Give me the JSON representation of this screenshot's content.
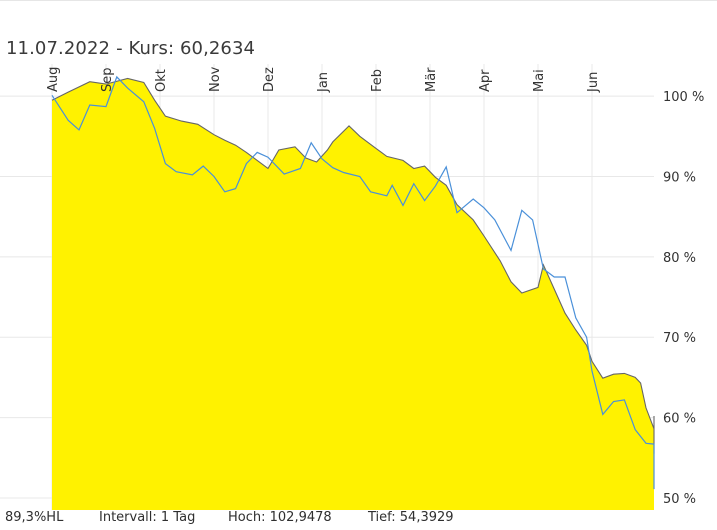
{
  "header": {
    "date": "11.07.2022",
    "price_text": "- Kurs: 60,2634"
  },
  "footer": {
    "range_label": "89,3%HL",
    "interval": "Intervall: 1 Tag",
    "high": "Hoch: 102,9478",
    "low": "Tief: 54,3929"
  },
  "colors": {
    "area_fill": "#fff200",
    "area_line": "#666666",
    "compare_line": "#4a90d9",
    "grid": "#e8e8e8"
  },
  "chart_data": {
    "type": "area",
    "x_ticks": [
      "Aug",
      "Sep",
      "Okt",
      "Nov",
      "Dez",
      "Jan",
      "Feb",
      "Mär",
      "Apr",
      "Mai",
      "Jun"
    ],
    "y_ticks": [
      "100 %",
      "90 %",
      "80 %",
      "70 %",
      "60 %",
      "50 %"
    ],
    "y_tick_values": [
      100,
      90,
      80,
      70,
      60,
      50
    ],
    "ylim": [
      48.5,
      104
    ],
    "series": [
      {
        "style": "area",
        "points": [
          [
            0,
            99.5
          ],
          [
            0.3,
            100.5
          ],
          [
            0.7,
            101.8
          ],
          [
            1.0,
            101.5
          ],
          [
            1.4,
            102.2
          ],
          [
            1.7,
            101.7
          ],
          [
            1.9,
            99.5
          ],
          [
            2.1,
            97.5
          ],
          [
            2.4,
            96.9
          ],
          [
            2.7,
            96.5
          ],
          [
            3.0,
            95.2
          ],
          [
            3.2,
            94.5
          ],
          [
            3.4,
            93.9
          ],
          [
            3.6,
            93.0
          ],
          [
            3.8,
            92.0
          ],
          [
            4.0,
            91.0
          ],
          [
            4.2,
            93.3
          ],
          [
            4.5,
            93.7
          ],
          [
            4.7,
            92.3
          ],
          [
            4.9,
            91.8
          ],
          [
            5.1,
            93.3
          ],
          [
            5.2,
            94.3
          ],
          [
            5.5,
            96.3
          ],
          [
            5.7,
            95.0
          ],
          [
            6.0,
            93.5
          ],
          [
            6.2,
            92.5
          ],
          [
            6.5,
            92.0
          ],
          [
            6.7,
            91.0
          ],
          [
            6.9,
            91.3
          ],
          [
            7.1,
            89.9
          ],
          [
            7.3,
            88.9
          ],
          [
            7.5,
            86.5
          ],
          [
            7.8,
            84.6
          ],
          [
            8.0,
            82.6
          ],
          [
            8.3,
            79.5
          ],
          [
            8.5,
            76.9
          ],
          [
            8.7,
            75.5
          ],
          [
            9.0,
            76.2
          ],
          [
            9.1,
            79.0
          ],
          [
            9.3,
            76.0
          ],
          [
            9.5,
            73.0
          ],
          [
            9.7,
            70.9
          ],
          [
            9.9,
            69.0
          ],
          [
            10.0,
            67.0
          ],
          [
            10.2,
            64.9
          ],
          [
            10.4,
            65.4
          ],
          [
            10.6,
            65.5
          ],
          [
            10.8,
            65.0
          ],
          [
            10.9,
            64.3
          ],
          [
            11.0,
            61.2
          ],
          [
            11.2,
            58.6
          ],
          [
            11.4,
            57.0
          ],
          [
            11.6,
            56.0
          ],
          [
            11.8,
            55.5
          ],
          [
            12.0,
            57.6
          ],
          [
            12.15,
            60.2
          ]
        ]
      },
      {
        "style": "line",
        "points": [
          [
            0,
            100.1
          ],
          [
            0.3,
            97.0
          ],
          [
            0.5,
            95.8
          ],
          [
            0.7,
            98.9
          ],
          [
            1.0,
            98.7
          ],
          [
            1.2,
            102.4
          ],
          [
            1.4,
            101.0
          ],
          [
            1.7,
            99.3
          ],
          [
            1.9,
            96.0
          ],
          [
            2.1,
            91.6
          ],
          [
            2.3,
            90.6
          ],
          [
            2.6,
            90.2
          ],
          [
            2.8,
            91.3
          ],
          [
            3.0,
            90.0
          ],
          [
            3.2,
            88.1
          ],
          [
            3.4,
            88.5
          ],
          [
            3.6,
            91.6
          ],
          [
            3.8,
            93.0
          ],
          [
            4.0,
            92.4
          ],
          [
            4.3,
            90.3
          ],
          [
            4.6,
            91.0
          ],
          [
            4.8,
            94.2
          ],
          [
            5.0,
            92.2
          ],
          [
            5.2,
            91.1
          ],
          [
            5.4,
            90.5
          ],
          [
            5.7,
            90.0
          ],
          [
            5.9,
            88.1
          ],
          [
            6.2,
            87.6
          ],
          [
            6.3,
            88.9
          ],
          [
            6.5,
            86.4
          ],
          [
            6.7,
            89.1
          ],
          [
            6.9,
            87.0
          ],
          [
            7.1,
            88.8
          ],
          [
            7.3,
            91.2
          ],
          [
            7.5,
            85.5
          ],
          [
            7.8,
            87.2
          ],
          [
            8.0,
            86.1
          ],
          [
            8.2,
            84.6
          ],
          [
            8.5,
            80.8
          ],
          [
            8.7,
            85.8
          ],
          [
            8.9,
            84.6
          ],
          [
            9.1,
            78.5
          ],
          [
            9.3,
            77.5
          ],
          [
            9.5,
            77.5
          ],
          [
            9.7,
            72.4
          ],
          [
            9.9,
            70.0
          ],
          [
            10.0,
            65.8
          ],
          [
            10.2,
            60.4
          ],
          [
            10.4,
            62.0
          ],
          [
            10.6,
            62.2
          ],
          [
            10.8,
            58.5
          ],
          [
            11.0,
            56.8
          ],
          [
            11.2,
            56.7
          ],
          [
            11.4,
            56.3
          ],
          [
            11.6,
            55.2
          ],
          [
            11.8,
            53.6
          ],
          [
            12.0,
            51.5
          ],
          [
            12.15,
            51.1
          ]
        ]
      }
    ]
  }
}
